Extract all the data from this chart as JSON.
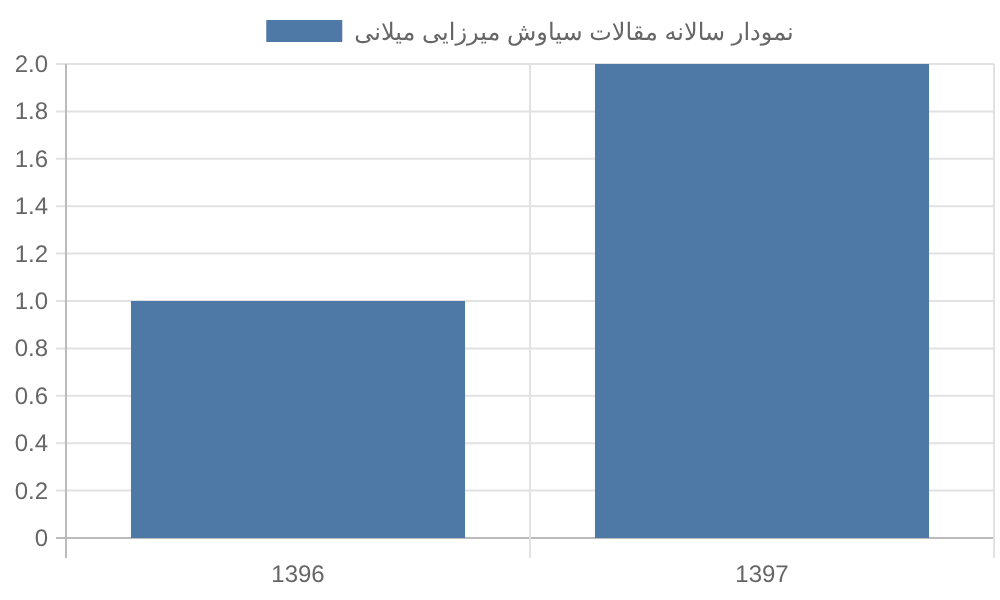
{
  "chart_data": {
    "type": "bar",
    "categories": [
      "1396",
      "1397"
    ],
    "series": [
      {
        "name": "نمودار سالانه مقالات سیاوش میرزایی میلانی",
        "color": "#4e79a7",
        "values": [
          1,
          2
        ]
      }
    ],
    "ylim": [
      0,
      2
    ],
    "yticks": [
      0,
      {
        "value": 0.2,
        "label": "0.2"
      },
      {
        "value": 0.4,
        "label": "0.4"
      },
      {
        "value": 0.6,
        "label": "0.6"
      },
      {
        "value": 0.8,
        "label": "0.8"
      },
      {
        "value": 1,
        "label": "1.0"
      },
      {
        "value": 1.2,
        "label": "1.2"
      },
      {
        "value": 1.4,
        "label": "1.4"
      },
      {
        "value": 1.6,
        "label": "1.6"
      },
      {
        "value": 1.8,
        "label": "1.8"
      },
      {
        "value": 2,
        "label": "2.0"
      }
    ],
    "grid": true,
    "legend": "top"
  }
}
